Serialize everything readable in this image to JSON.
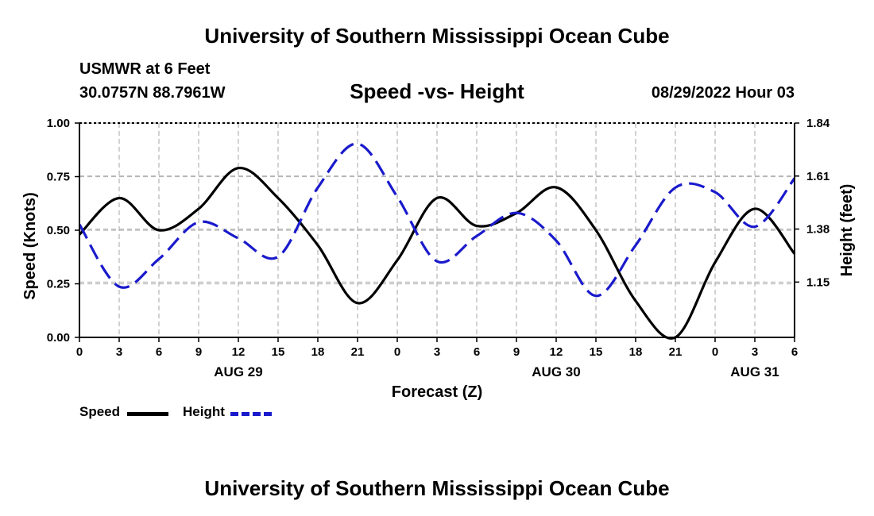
{
  "header": {
    "title_top": "University of Southern Mississippi Ocean Cube",
    "station": "USMWR at 6 Feet",
    "coordinates": "30.0757N  88.7961W",
    "date_hour": "08/29/2022 Hour 03",
    "title_bottom": "University of Southern Mississippi Ocean Cube"
  },
  "legend": {
    "speed_label": "Speed",
    "height_label": "Height"
  },
  "colors": {
    "speed": "#000000",
    "height": "#1a1acc",
    "grid": "#b4b4b4"
  },
  "chart_data": {
    "type": "line",
    "title": "Speed -vs- Height",
    "xlabel": "Forecast (Z)",
    "ylabel": "Speed (Knots)",
    "y2label": "Height (feet)",
    "x_range": [
      0,
      54
    ],
    "ylim": [
      0,
      1.0
    ],
    "y2lim": [
      0.91,
      1.84
    ],
    "y_ticks": [
      0.0,
      0.25,
      0.5,
      0.75,
      1.0
    ],
    "y_tick_labels": [
      "0.00",
      "0.25",
      "0.50",
      "0.75",
      "1.00"
    ],
    "y2_ticks": [
      1.15,
      1.38,
      1.61,
      1.84
    ],
    "y2_tick_labels": [
      "1.15",
      "1.38",
      "1.61",
      "1.84"
    ],
    "x_ticks": [
      0,
      3,
      6,
      9,
      12,
      15,
      18,
      21,
      24,
      27,
      30,
      33,
      36,
      39,
      42,
      45,
      48,
      51,
      54
    ],
    "x_tick_labels": [
      "0",
      "3",
      "6",
      "9",
      "12",
      "15",
      "18",
      "21",
      "0",
      "3",
      "6",
      "9",
      "12",
      "15",
      "18",
      "21",
      "0",
      "3",
      "6"
    ],
    "date_labels": [
      {
        "x": 12,
        "label": "AUG 29"
      },
      {
        "x": 36,
        "label": "AUG 30"
      },
      {
        "x": 51,
        "label": "AUG 31"
      }
    ],
    "grid": true,
    "series": [
      {
        "name": "Speed",
        "axis": "left",
        "style": "solid",
        "x": [
          0,
          3,
          6,
          9,
          12,
          15,
          18,
          21,
          24,
          27,
          30,
          33,
          36,
          39,
          42,
          45,
          48,
          51,
          54
        ],
        "values": [
          0.48,
          0.65,
          0.5,
          0.6,
          0.79,
          0.65,
          0.43,
          0.16,
          0.36,
          0.65,
          0.52,
          0.58,
          0.7,
          0.5,
          0.17,
          0.0,
          0.35,
          0.6,
          0.39
        ]
      },
      {
        "name": "Height",
        "axis": "right",
        "style": "dashed",
        "x": [
          0,
          3,
          6,
          9,
          12,
          15,
          18,
          21,
          24,
          27,
          30,
          33,
          36,
          39,
          42,
          45,
          48,
          51,
          54
        ],
        "values": [
          1.4,
          1.13,
          1.25,
          1.41,
          1.34,
          1.26,
          1.56,
          1.75,
          1.52,
          1.24,
          1.35,
          1.45,
          1.33,
          1.09,
          1.31,
          1.56,
          1.54,
          1.39,
          1.6
        ]
      }
    ]
  }
}
